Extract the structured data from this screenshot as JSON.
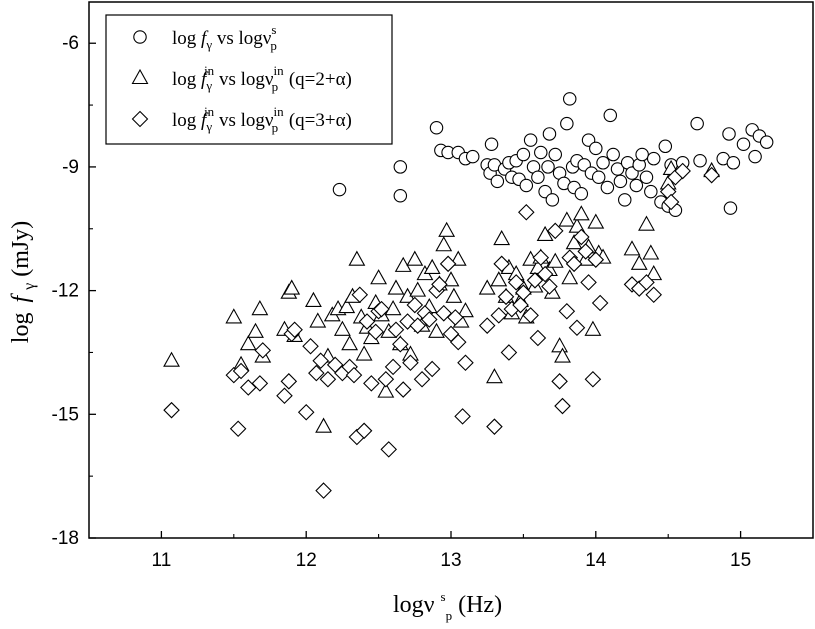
{
  "chart_data": {
    "type": "scatter",
    "xlim": [
      10.5,
      15.5
    ],
    "ylim": [
      -18,
      -5
    ],
    "x_ticks": [
      "11",
      "12",
      "13",
      "14",
      "15"
    ],
    "y_ticks": [
      "-6",
      "-9",
      "-12",
      "-15",
      "-18"
    ],
    "x_tick_values": [
      11,
      12,
      13,
      14,
      15
    ],
    "y_tick_values": [
      -6,
      -9,
      -12,
      -15,
      -18
    ],
    "xlabel": {
      "main": "logν",
      "sup": "s",
      "sub": "p",
      "tail": " (Hz)"
    },
    "ylabel": {
      "main": "log",
      "italic": "f",
      "sub": "γ",
      "tail": " (mJy)"
    },
    "grid": false,
    "legend_position": "top-left",
    "series": [
      {
        "marker": "circle",
        "legend": {
          "a": "log ",
          "f": "f",
          "fsub": "γ",
          "fsup": "",
          "b": " vs logν",
          "nusup": "s",
          "nusub": "p",
          "q": ""
        },
        "points": [
          [
            12.23,
            -9.55
          ],
          [
            12.65,
            -9.0
          ],
          [
            12.65,
            -9.7
          ],
          [
            12.9,
            -8.05
          ],
          [
            12.93,
            -8.6
          ],
          [
            12.98,
            -8.65
          ],
          [
            13.05,
            -8.65
          ],
          [
            13.1,
            -8.8
          ],
          [
            13.15,
            -8.75
          ],
          [
            13.25,
            -8.95
          ],
          [
            13.27,
            -9.15
          ],
          [
            13.28,
            -8.45
          ],
          [
            13.3,
            -8.95
          ],
          [
            13.32,
            -9.35
          ],
          [
            13.37,
            -9.05
          ],
          [
            13.4,
            -8.9
          ],
          [
            13.42,
            -9.25
          ],
          [
            13.45,
            -8.85
          ],
          [
            13.47,
            -9.3
          ],
          [
            13.5,
            -8.7
          ],
          [
            13.52,
            -9.45
          ],
          [
            13.55,
            -8.35
          ],
          [
            13.57,
            -9.0
          ],
          [
            13.6,
            -9.25
          ],
          [
            13.62,
            -8.65
          ],
          [
            13.65,
            -9.6
          ],
          [
            13.67,
            -9.0
          ],
          [
            13.68,
            -8.2
          ],
          [
            13.7,
            -9.8
          ],
          [
            13.72,
            -8.7
          ],
          [
            13.75,
            -9.15
          ],
          [
            13.78,
            -9.4
          ],
          [
            13.8,
            -7.95
          ],
          [
            13.82,
            -7.35
          ],
          [
            13.84,
            -9.0
          ],
          [
            13.85,
            -9.5
          ],
          [
            13.87,
            -8.85
          ],
          [
            13.9,
            -9.65
          ],
          [
            13.92,
            -8.95
          ],
          [
            13.95,
            -8.35
          ],
          [
            13.97,
            -9.15
          ],
          [
            14.0,
            -8.55
          ],
          [
            14.02,
            -9.25
          ],
          [
            14.05,
            -8.9
          ],
          [
            14.08,
            -9.5
          ],
          [
            14.1,
            -7.75
          ],
          [
            14.12,
            -8.7
          ],
          [
            14.15,
            -9.05
          ],
          [
            14.17,
            -9.35
          ],
          [
            14.2,
            -9.8
          ],
          [
            14.22,
            -8.9
          ],
          [
            14.25,
            -9.15
          ],
          [
            14.28,
            -9.45
          ],
          [
            14.3,
            -8.95
          ],
          [
            14.32,
            -8.7
          ],
          [
            14.35,
            -9.25
          ],
          [
            14.38,
            -9.6
          ],
          [
            14.4,
            -8.8
          ],
          [
            14.45,
            -9.85
          ],
          [
            14.48,
            -8.5
          ],
          [
            14.5,
            -9.95
          ],
          [
            14.52,
            -8.95
          ],
          [
            14.55,
            -10.05
          ],
          [
            14.6,
            -8.9
          ],
          [
            14.7,
            -7.95
          ],
          [
            14.72,
            -8.85
          ],
          [
            14.88,
            -8.8
          ],
          [
            14.92,
            -8.2
          ],
          [
            14.95,
            -8.9
          ],
          [
            14.93,
            -10.0
          ],
          [
            15.02,
            -8.45
          ],
          [
            15.08,
            -8.1
          ],
          [
            15.1,
            -8.75
          ],
          [
            15.13,
            -8.25
          ],
          [
            15.18,
            -8.4
          ]
        ]
      },
      {
        "marker": "triangle",
        "legend": {
          "a": "log ",
          "f": "f",
          "fsub": "γ",
          "fsup": "in",
          "b": " vs logν",
          "nusup": "in",
          "nusub": "p",
          "q": " (q=2+α)"
        },
        "points": [
          [
            11.07,
            -13.7
          ],
          [
            11.5,
            -12.65
          ],
          [
            11.55,
            -13.8
          ],
          [
            11.6,
            -13.3
          ],
          [
            11.65,
            -13.0
          ],
          [
            11.68,
            -12.45
          ],
          [
            11.7,
            -13.6
          ],
          [
            11.85,
            -12.95
          ],
          [
            11.88,
            -12.05
          ],
          [
            11.9,
            -11.95
          ],
          [
            11.92,
            -13.1
          ],
          [
            12.05,
            -12.25
          ],
          [
            12.08,
            -12.75
          ],
          [
            12.12,
            -15.3
          ],
          [
            12.15,
            -13.6
          ],
          [
            12.18,
            -12.6
          ],
          [
            12.22,
            -12.45
          ],
          [
            12.25,
            -12.95
          ],
          [
            12.28,
            -12.4
          ],
          [
            12.3,
            -13.3
          ],
          [
            12.32,
            -12.15
          ],
          [
            12.35,
            -11.25
          ],
          [
            12.38,
            -12.65
          ],
          [
            12.4,
            -13.55
          ],
          [
            12.42,
            -12.9
          ],
          [
            12.45,
            -13.15
          ],
          [
            12.48,
            -12.3
          ],
          [
            12.5,
            -11.7
          ],
          [
            12.52,
            -12.6
          ],
          [
            12.55,
            -14.45
          ],
          [
            12.57,
            -13.0
          ],
          [
            12.6,
            -12.45
          ],
          [
            12.62,
            -11.95
          ],
          [
            12.65,
            -13.3
          ],
          [
            12.67,
            -11.4
          ],
          [
            12.7,
            -12.15
          ],
          [
            12.72,
            -13.55
          ],
          [
            12.75,
            -11.25
          ],
          [
            12.77,
            -12.0
          ],
          [
            12.8,
            -12.85
          ],
          [
            12.82,
            -11.6
          ],
          [
            12.85,
            -12.4
          ],
          [
            12.87,
            -11.45
          ],
          [
            12.9,
            -13.0
          ],
          [
            12.92,
            -11.85
          ],
          [
            12.95,
            -10.9
          ],
          [
            12.97,
            -10.55
          ],
          [
            13.0,
            -11.75
          ],
          [
            13.02,
            -12.15
          ],
          [
            13.05,
            -11.25
          ],
          [
            13.07,
            -12.75
          ],
          [
            13.1,
            -12.5
          ],
          [
            13.25,
            -11.95
          ],
          [
            13.3,
            -14.1
          ],
          [
            13.33,
            -11.75
          ],
          [
            13.35,
            -10.75
          ],
          [
            13.38,
            -12.15
          ],
          [
            13.4,
            -11.45
          ],
          [
            13.42,
            -12.55
          ],
          [
            13.45,
            -11.6
          ],
          [
            13.48,
            -12.25
          ],
          [
            13.5,
            -11.95
          ],
          [
            13.52,
            -12.65
          ],
          [
            13.55,
            -11.25
          ],
          [
            13.58,
            -11.9
          ],
          [
            13.6,
            -11.45
          ],
          [
            13.62,
            -11.2
          ],
          [
            13.65,
            -10.65
          ],
          [
            13.68,
            -11.5
          ],
          [
            13.7,
            -12.05
          ],
          [
            13.72,
            -11.3
          ],
          [
            13.75,
            -13.35
          ],
          [
            13.77,
            -13.6
          ],
          [
            13.8,
            -10.3
          ],
          [
            13.82,
            -11.7
          ],
          [
            13.85,
            -10.85
          ],
          [
            13.87,
            -10.45
          ],
          [
            13.9,
            -10.15
          ],
          [
            13.93,
            -11.25
          ],
          [
            13.95,
            -10.95
          ],
          [
            13.98,
            -12.95
          ],
          [
            14.0,
            -10.35
          ],
          [
            14.02,
            -11.1
          ],
          [
            14.05,
            -11.2
          ],
          [
            14.25,
            -11.0
          ],
          [
            14.3,
            -11.35
          ],
          [
            14.35,
            -10.4
          ],
          [
            14.38,
            -11.1
          ],
          [
            14.4,
            -11.6
          ],
          [
            14.5,
            -9.4
          ],
          [
            14.52,
            -9.05
          ],
          [
            14.8,
            -9.1
          ]
        ]
      },
      {
        "marker": "diamond",
        "legend": {
          "a": "log ",
          "f": "f",
          "fsub": "γ",
          "fsup": "in",
          "b": " vs logν",
          "nusup": "in",
          "nusub": "p",
          "q": " (q=3+α)"
        },
        "points": [
          [
            11.07,
            -14.9
          ],
          [
            11.5,
            -14.05
          ],
          [
            11.53,
            -15.35
          ],
          [
            11.55,
            -13.95
          ],
          [
            11.6,
            -14.35
          ],
          [
            11.68,
            -14.25
          ],
          [
            11.7,
            -13.45
          ],
          [
            11.85,
            -14.55
          ],
          [
            11.88,
            -14.2
          ],
          [
            11.9,
            -13.05
          ],
          [
            11.92,
            -12.95
          ],
          [
            12.0,
            -14.95
          ],
          [
            12.03,
            -13.35
          ],
          [
            12.07,
            -14.0
          ],
          [
            12.1,
            -13.7
          ],
          [
            12.12,
            -16.85
          ],
          [
            12.15,
            -14.15
          ],
          [
            12.2,
            -13.8
          ],
          [
            12.25,
            -14.0
          ],
          [
            12.3,
            -13.85
          ],
          [
            12.33,
            -14.05
          ],
          [
            12.35,
            -15.55
          ],
          [
            12.37,
            -12.1
          ],
          [
            12.4,
            -15.4
          ],
          [
            12.42,
            -12.75
          ],
          [
            12.45,
            -14.25
          ],
          [
            12.48,
            -13.0
          ],
          [
            12.5,
            -12.5
          ],
          [
            12.52,
            -12.45
          ],
          [
            12.55,
            -14.15
          ],
          [
            12.57,
            -15.85
          ],
          [
            12.6,
            -13.85
          ],
          [
            12.62,
            -12.95
          ],
          [
            12.65,
            -13.3
          ],
          [
            12.67,
            -14.4
          ],
          [
            12.7,
            -12.75
          ],
          [
            12.72,
            -13.75
          ],
          [
            12.75,
            -12.35
          ],
          [
            12.77,
            -12.85
          ],
          [
            12.8,
            -14.15
          ],
          [
            12.82,
            -12.55
          ],
          [
            12.85,
            -12.7
          ],
          [
            12.87,
            -13.9
          ],
          [
            12.9,
            -12.0
          ],
          [
            12.92,
            -11.85
          ],
          [
            12.95,
            -12.55
          ],
          [
            12.98,
            -11.35
          ],
          [
            13.0,
            -13.05
          ],
          [
            13.03,
            -12.65
          ],
          [
            13.05,
            -13.25
          ],
          [
            13.08,
            -15.05
          ],
          [
            13.1,
            -13.75
          ],
          [
            13.25,
            -12.85
          ],
          [
            13.3,
            -15.3
          ],
          [
            13.33,
            -12.6
          ],
          [
            13.35,
            -11.35
          ],
          [
            13.38,
            -12.15
          ],
          [
            13.4,
            -13.5
          ],
          [
            13.42,
            -12.45
          ],
          [
            13.45,
            -11.8
          ],
          [
            13.48,
            -12.35
          ],
          [
            13.5,
            -12.05
          ],
          [
            13.52,
            -10.1
          ],
          [
            13.55,
            -12.6
          ],
          [
            13.58,
            -11.75
          ],
          [
            13.6,
            -13.15
          ],
          [
            13.62,
            -11.2
          ],
          [
            13.65,
            -11.6
          ],
          [
            13.68,
            -11.9
          ],
          [
            13.72,
            -10.55
          ],
          [
            13.75,
            -14.2
          ],
          [
            13.77,
            -14.8
          ],
          [
            13.8,
            -12.5
          ],
          [
            13.82,
            -11.2
          ],
          [
            13.85,
            -11.35
          ],
          [
            13.87,
            -12.9
          ],
          [
            13.9,
            -10.7
          ],
          [
            13.93,
            -11.05
          ],
          [
            13.95,
            -11.8
          ],
          [
            13.98,
            -14.15
          ],
          [
            14.0,
            -11.25
          ],
          [
            14.03,
            -12.3
          ],
          [
            14.25,
            -11.85
          ],
          [
            14.3,
            -11.95
          ],
          [
            14.35,
            -11.8
          ],
          [
            14.4,
            -12.1
          ],
          [
            14.5,
            -9.6
          ],
          [
            14.52,
            -9.85
          ],
          [
            14.55,
            -9.25
          ],
          [
            14.6,
            -9.1
          ],
          [
            14.8,
            -9.2
          ]
        ]
      }
    ]
  }
}
